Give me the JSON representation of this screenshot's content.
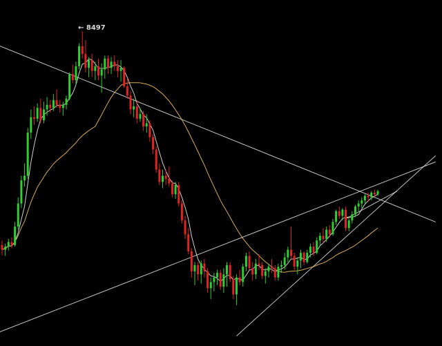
{
  "chart_data": {
    "type": "candlestick",
    "title": "",
    "xlabel": "",
    "ylabel": "",
    "grid": false,
    "annotations": [
      {
        "text": "8497",
        "arrow": "←",
        "marks": "highest high"
      }
    ],
    "ylim": [
      6630,
      8530
    ],
    "colors": {
      "background": "#000000",
      "up_candle": "#2fcf2f",
      "down_candle": "#e02424",
      "ma_fast": "#e6e6e6",
      "ma_slow": "#f0c060",
      "trendline": "#e6e6e6",
      "label": "#d8d8d8"
    },
    "candles": [
      [
        7110,
        7140,
        7045,
        7080
      ],
      [
        7080,
        7120,
        7040,
        7100
      ],
      [
        7100,
        7150,
        7075,
        7130
      ],
      [
        7130,
        7160,
        7090,
        7110
      ],
      [
        7110,
        7260,
        7100,
        7230
      ],
      [
        7230,
        7420,
        7210,
        7380
      ],
      [
        7380,
        7560,
        7350,
        7530
      ],
      [
        7530,
        7640,
        7490,
        7560
      ],
      [
        7560,
        7870,
        7540,
        7840
      ],
      [
        7840,
        7990,
        7800,
        7940
      ],
      [
        7940,
        8010,
        7890,
        7930
      ],
      [
        7930,
        8030,
        7910,
        8000
      ],
      [
        8000,
        8060,
        7900,
        7920
      ],
      [
        7920,
        8040,
        7900,
        7990
      ],
      [
        7990,
        8070,
        7950,
        8020
      ],
      [
        8020,
        8050,
        7970,
        8000
      ],
      [
        8000,
        8090,
        7980,
        8050
      ],
      [
        8050,
        8120,
        8000,
        8020
      ],
      [
        8020,
        8050,
        7970,
        8000
      ],
      [
        8000,
        8040,
        7950,
        8020
      ],
      [
        8020,
        8080,
        7990,
        8060
      ],
      [
        8060,
        8230,
        8050,
        8220
      ],
      [
        8220,
        8280,
        8160,
        8180
      ],
      [
        8180,
        8300,
        8150,
        8270
      ],
      [
        8270,
        8420,
        8250,
        8400
      ],
      [
        8400,
        8497,
        8320,
        8350
      ],
      [
        8350,
        8440,
        8230,
        8260
      ],
      [
        8260,
        8330,
        8200,
        8310
      ],
      [
        8310,
        8350,
        8200,
        8240
      ],
      [
        8240,
        8300,
        8180,
        8270
      ],
      [
        8270,
        8320,
        8180,
        8210
      ],
      [
        8210,
        8290,
        8100,
        8250
      ],
      [
        8250,
        8340,
        8190,
        8320
      ],
      [
        8320,
        8340,
        8220,
        8260
      ],
      [
        8260,
        8330,
        8220,
        8300
      ],
      [
        8300,
        8340,
        8240,
        8270
      ],
      [
        8270,
        8310,
        8200,
        8240
      ],
      [
        8240,
        8310,
        8170,
        8260
      ],
      [
        8260,
        8270,
        8130,
        8140
      ],
      [
        8140,
        8190,
        8060,
        8080
      ],
      [
        8080,
        8110,
        7960,
        7990
      ],
      [
        7990,
        8060,
        7940,
        8010
      ],
      [
        8010,
        8050,
        7900,
        7930
      ],
      [
        7930,
        8000,
        7910,
        7960
      ],
      [
        7960,
        7980,
        7850,
        7880
      ],
      [
        7880,
        7960,
        7840,
        7900
      ],
      [
        7900,
        7920,
        7780,
        7810
      ],
      [
        7810,
        7830,
        7700,
        7730
      ],
      [
        7730,
        7750,
        7580,
        7600
      ],
      [
        7600,
        7640,
        7500,
        7520
      ],
      [
        7520,
        7600,
        7480,
        7560
      ],
      [
        7560,
        7600,
        7500,
        7540
      ],
      [
        7540,
        7620,
        7490,
        7510
      ],
      [
        7510,
        7530,
        7420,
        7440
      ],
      [
        7440,
        7520,
        7410,
        7500
      ],
      [
        7500,
        7520,
        7360,
        7380
      ],
      [
        7380,
        7400,
        7250,
        7270
      ],
      [
        7270,
        7300,
        7150,
        7180
      ],
      [
        7180,
        7220,
        7050,
        7070
      ],
      [
        7070,
        7090,
        6900,
        6940
      ],
      [
        6940,
        7000,
        6850,
        6980
      ],
      [
        6980,
        7000,
        6880,
        6920
      ],
      [
        6920,
        7010,
        6860,
        6990
      ],
      [
        6990,
        7020,
        6900,
        6940
      ],
      [
        6940,
        6960,
        6800,
        6830
      ],
      [
        6830,
        6900,
        6760,
        6870
      ],
      [
        6870,
        6930,
        6810,
        6900
      ],
      [
        6900,
        6950,
        6850,
        6930
      ],
      [
        6930,
        6950,
        6820,
        6840
      ],
      [
        6840,
        6960,
        6800,
        6920
      ],
      [
        6920,
        7000,
        6840,
        6980
      ],
      [
        6980,
        7000,
        6870,
        6890
      ],
      [
        6890,
        6910,
        6760,
        6790
      ],
      [
        6790,
        6920,
        6720,
        6900
      ],
      [
        6900,
        6950,
        6850,
        6870
      ],
      [
        6870,
        6990,
        6840,
        6970
      ],
      [
        6970,
        7060,
        6940,
        7040
      ],
      [
        7040,
        7070,
        6950,
        6960
      ],
      [
        6960,
        7000,
        6880,
        6920
      ],
      [
        6920,
        7020,
        6890,
        6990
      ],
      [
        6990,
        7050,
        6950,
        6980
      ],
      [
        6980,
        7000,
        6890,
        6910
      ],
      [
        6910,
        6960,
        6860,
        6940
      ],
      [
        6940,
        6990,
        6900,
        6970
      ],
      [
        6970,
        7020,
        6930,
        6960
      ],
      [
        6960,
        6980,
        6880,
        6900
      ],
      [
        6900,
        6990,
        6880,
        6970
      ],
      [
        6970,
        7010,
        6930,
        6980
      ],
      [
        6980,
        7060,
        6950,
        7030
      ],
      [
        7030,
        7100,
        7000,
        7080
      ],
      [
        7080,
        7230,
        7020,
        7040
      ],
      [
        7040,
        7060,
        6950,
        6970
      ],
      [
        6970,
        7030,
        6920,
        7010
      ],
      [
        7010,
        7080,
        6960,
        7060
      ],
      [
        7060,
        7070,
        6980,
        7000
      ],
      [
        7000,
        7080,
        6990,
        7060
      ],
      [
        7060,
        7120,
        7030,
        7100
      ],
      [
        7100,
        7130,
        7040,
        7060
      ],
      [
        7060,
        7160,
        7050,
        7140
      ],
      [
        7140,
        7190,
        7100,
        7170
      ],
      [
        7170,
        7220,
        7120,
        7150
      ],
      [
        7150,
        7230,
        7130,
        7210
      ],
      [
        7210,
        7240,
        7160,
        7180
      ],
      [
        7180,
        7280,
        7170,
        7260
      ],
      [
        7260,
        7340,
        7240,
        7330
      ],
      [
        7330,
        7360,
        7280,
        7300
      ],
      [
        7300,
        7350,
        7270,
        7340
      ],
      [
        7340,
        7360,
        7200,
        7220
      ],
      [
        7220,
        7290,
        7200,
        7270
      ],
      [
        7270,
        7330,
        7250,
        7310
      ],
      [
        7310,
        7370,
        7290,
        7360
      ],
      [
        7360,
        7400,
        7330,
        7380
      ],
      [
        7380,
        7420,
        7350,
        7400
      ],
      [
        7400,
        7440,
        7380,
        7430
      ],
      [
        7430,
        7450,
        7390,
        7420
      ],
      [
        7420,
        7460,
        7400,
        7450
      ],
      [
        7450,
        7470,
        7420,
        7440
      ],
      [
        7440,
        7470,
        7430,
        7460
      ]
    ],
    "moving_averages": [
      {
        "period": 5,
        "color": "#e6e6e6"
      },
      {
        "period": 30,
        "color": "#f0c060"
      }
    ],
    "trendlines": [
      {
        "x0": -12,
        "y0": 8497,
        "x1": 135,
        "y1": 7260
      },
      {
        "x0": -4,
        "y0": 6520,
        "x1": 135,
        "y1": 7650
      },
      {
        "x0": 73,
        "y0": 6520,
        "x1": 135,
        "y1": 7690
      },
      {
        "x0": 107,
        "y0": 7280,
        "x1": 123,
        "y1": 7460
      }
    ]
  }
}
